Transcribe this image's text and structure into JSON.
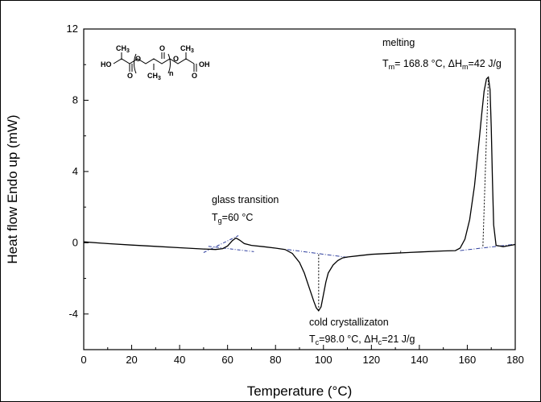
{
  "chart_data": {
    "type": "line",
    "title": "",
    "xlabel": "Temperature (°C)",
    "ylabel": "Heat flow Endo up (mW)",
    "xlim": [
      0,
      180
    ],
    "ylim": [
      -6,
      12
    ],
    "x_ticks": [
      0,
      20,
      40,
      60,
      80,
      100,
      120,
      140,
      160,
      180
    ],
    "y_ticks": [
      -4,
      0,
      4,
      8,
      12
    ],
    "grid": false,
    "colors": {
      "curve": "#000000",
      "baseline": "#2f3f9e"
    },
    "series": [
      {
        "x": [
          0,
          10,
          20,
          30,
          40,
          50,
          55,
          58,
          60,
          62,
          63.5,
          65,
          67,
          70,
          75,
          80,
          84,
          87,
          90,
          92,
          94,
          96,
          97,
          98,
          99,
          100,
          101,
          102,
          104,
          106,
          108,
          110,
          115,
          120,
          130,
          140,
          150,
          155,
          157,
          159,
          161,
          163,
          165,
          166,
          167,
          168,
          168.8,
          169.5,
          170,
          170.5,
          171,
          172,
          175,
          180
        ],
        "y": [
          0.05,
          -0.05,
          -0.13,
          -0.2,
          -0.28,
          -0.35,
          -0.38,
          -0.33,
          -0.18,
          0.12,
          0.27,
          0.15,
          -0.05,
          -0.15,
          -0.22,
          -0.3,
          -0.38,
          -0.6,
          -1.1,
          -1.7,
          -2.5,
          -3.3,
          -3.65,
          -3.82,
          -3.6,
          -2.9,
          -2.2,
          -1.7,
          -1.25,
          -1.0,
          -0.85,
          -0.8,
          -0.72,
          -0.65,
          -0.58,
          -0.52,
          -0.46,
          -0.44,
          -0.3,
          0.2,
          1.3,
          3.2,
          5.8,
          7.2,
          8.5,
          9.2,
          9.3,
          8.6,
          6.5,
          3.5,
          1.0,
          -0.15,
          -0.22,
          -0.1
        ]
      }
    ],
    "annotations": {
      "glass_transition": "glass transition",
      "tg_symbol": "T",
      "tg_sub": "g",
      "tg_value": "=60 °C",
      "cold_crystallization": "cold crystallizaton",
      "tc_symbol": "T",
      "tc_sub": "c",
      "tc_value": "=98.0 °C, ΔH",
      "tc_sub2": "c",
      "tc_value2": "=21 J/g",
      "melting": "melting",
      "tm_symbol": "T",
      "tm_sub": "m",
      "tm_value": "= 168.8 °C, ΔH",
      "tm_sub2": "m",
      "tm_value2": "=42 J/g"
    },
    "structure_labels": {
      "ch3_left": "CH",
      "ch3_mid": "CH",
      "ch3_right": "CH",
      "three": "3",
      "ho": "HO",
      "oh": "OH",
      "o": "O",
      "n": "n"
    }
  }
}
